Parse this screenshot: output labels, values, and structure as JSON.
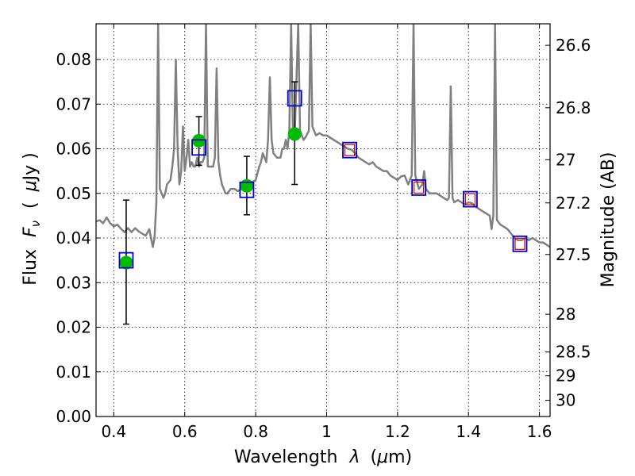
{
  "chart_data": {
    "type": "scatter",
    "xlabel_text": "Wavelength",
    "xlabel_symbol": "λ",
    "xlabel_unit_open": "(",
    "xlabel_unit_mu": "μ",
    "xlabel_unit_rest": "m)",
    "ylabel_text": "Flux",
    "ylabel_symbol": "F",
    "ylabel_subscript": "ν",
    "ylabel_unit_open": "(",
    "ylabel_unit_mu": "μ",
    "ylabel_unit_rest": "Jy )",
    "y2label": "Magnitude (AB)",
    "xlim": [
      0.35,
      1.63
    ],
    "ylim": [
      0.0,
      0.088
    ],
    "grid": true,
    "x_ticks": [
      0.4,
      0.6,
      0.8,
      1.0,
      1.2,
      1.4,
      1.6
    ],
    "x_tick_labels": [
      "0.4",
      "0.6",
      "0.8",
      "1",
      "1.2",
      "1.4",
      "1.6"
    ],
    "y_ticks": [
      0.0,
      0.01,
      0.02,
      0.03,
      0.04,
      0.05,
      0.06,
      0.07,
      0.08
    ],
    "y_tick_labels": [
      "0.00",
      "0.01",
      "0.02",
      "0.03",
      "0.04",
      "0.05",
      "0.06",
      "0.07",
      "0.08"
    ],
    "mag_ticks": [
      26.6,
      26.8,
      27,
      27.2,
      27.5,
      28,
      28.5,
      29,
      30
    ],
    "mag_tick_labels": [
      "26.6",
      "26.8",
      "27",
      "27.2",
      "27.5",
      "28",
      "28.5",
      "29",
      "30"
    ],
    "colors": {
      "spectrum": "#808080",
      "observed": "#00bb00",
      "model_box": "#0000cc",
      "model_box_inner": "#cc0000",
      "errorbar": "#000000"
    },
    "spectrum": [
      [
        0.35,
        0.0437
      ],
      [
        0.36,
        0.044
      ],
      [
        0.37,
        0.0433
      ],
      [
        0.38,
        0.0446
      ],
      [
        0.39,
        0.0433
      ],
      [
        0.4,
        0.0426
      ],
      [
        0.41,
        0.043
      ],
      [
        0.42,
        0.0421
      ],
      [
        0.43,
        0.0413
      ],
      [
        0.44,
        0.0422
      ],
      [
        0.45,
        0.0413
      ],
      [
        0.46,
        0.0422
      ],
      [
        0.47,
        0.0415
      ],
      [
        0.48,
        0.041
      ],
      [
        0.49,
        0.0405
      ],
      [
        0.5,
        0.042
      ],
      [
        0.505,
        0.04
      ],
      [
        0.51,
        0.038
      ],
      [
        0.515,
        0.04
      ],
      [
        0.52,
        0.048
      ],
      [
        0.525,
        0.088
      ],
      [
        0.53,
        0.051
      ],
      [
        0.54,
        0.049
      ],
      [
        0.545,
        0.05
      ],
      [
        0.55,
        0.052
      ],
      [
        0.56,
        0.053
      ],
      [
        0.565,
        0.056
      ],
      [
        0.57,
        0.06
      ],
      [
        0.575,
        0.08
      ],
      [
        0.58,
        0.06
      ],
      [
        0.585,
        0.052
      ],
      [
        0.59,
        0.055
      ],
      [
        0.595,
        0.065
      ],
      [
        0.6,
        0.055
      ],
      [
        0.605,
        0.058
      ],
      [
        0.61,
        0.062
      ],
      [
        0.615,
        0.056
      ],
      [
        0.62,
        0.057
      ],
      [
        0.625,
        0.056
      ],
      [
        0.63,
        0.056
      ],
      [
        0.635,
        0.058
      ],
      [
        0.64,
        0.056
      ],
      [
        0.645,
        0.057
      ],
      [
        0.65,
        0.057
      ],
      [
        0.655,
        0.058
      ],
      [
        0.66,
        0.088
      ],
      [
        0.665,
        0.056
      ],
      [
        0.67,
        0.056
      ],
      [
        0.675,
        0.056
      ],
      [
        0.68,
        0.056
      ],
      [
        0.685,
        0.058
      ],
      [
        0.69,
        0.078
      ],
      [
        0.695,
        0.057
      ],
      [
        0.7,
        0.054
      ],
      [
        0.705,
        0.052
      ],
      [
        0.71,
        0.051
      ],
      [
        0.715,
        0.05
      ],
      [
        0.72,
        0.05
      ],
      [
        0.73,
        0.051
      ],
      [
        0.74,
        0.051
      ],
      [
        0.75,
        0.0505
      ],
      [
        0.76,
        0.051
      ],
      [
        0.77,
        0.052
      ],
      [
        0.78,
        0.052
      ],
      [
        0.79,
        0.0525
      ],
      [
        0.8,
        0.053
      ],
      [
        0.81,
        0.056
      ],
      [
        0.815,
        0.057
      ],
      [
        0.82,
        0.059
      ],
      [
        0.825,
        0.058
      ],
      [
        0.83,
        0.057
      ],
      [
        0.835,
        0.062
      ],
      [
        0.84,
        0.076
      ],
      [
        0.845,
        0.062
      ],
      [
        0.85,
        0.059
      ],
      [
        0.86,
        0.058
      ],
      [
        0.87,
        0.058
      ],
      [
        0.875,
        0.06
      ],
      [
        0.88,
        0.06
      ],
      [
        0.885,
        0.062
      ],
      [
        0.89,
        0.06
      ],
      [
        0.895,
        0.064
      ],
      [
        0.9,
        0.088
      ],
      [
        0.905,
        0.064
      ],
      [
        0.91,
        0.063
      ],
      [
        0.92,
        0.088
      ],
      [
        0.925,
        0.064
      ],
      [
        0.93,
        0.063
      ],
      [
        0.935,
        0.062
      ],
      [
        0.94,
        0.0625
      ],
      [
        0.95,
        0.064
      ],
      [
        0.955,
        0.088
      ],
      [
        0.96,
        0.065
      ],
      [
        0.965,
        0.064
      ],
      [
        0.97,
        0.063
      ],
      [
        0.98,
        0.0635
      ],
      [
        0.99,
        0.063
      ],
      [
        1.0,
        0.063
      ],
      [
        1.01,
        0.0625
      ],
      [
        1.02,
        0.062
      ],
      [
        1.03,
        0.0615
      ],
      [
        1.04,
        0.061
      ],
      [
        1.05,
        0.0605
      ],
      [
        1.06,
        0.06
      ],
      [
        1.07,
        0.0598
      ],
      [
        1.08,
        0.059
      ],
      [
        1.09,
        0.058
      ],
      [
        1.1,
        0.0575
      ],
      [
        1.11,
        0.057
      ],
      [
        1.12,
        0.0565
      ],
      [
        1.13,
        0.057
      ],
      [
        1.14,
        0.056
      ],
      [
        1.15,
        0.0555
      ],
      [
        1.16,
        0.055
      ],
      [
        1.17,
        0.055
      ],
      [
        1.18,
        0.054
      ],
      [
        1.19,
        0.0535
      ],
      [
        1.2,
        0.053
      ],
      [
        1.21,
        0.0538
      ],
      [
        1.22,
        0.054
      ],
      [
        1.225,
        0.053
      ],
      [
        1.23,
        0.052
      ],
      [
        1.24,
        0.054
      ],
      [
        1.245,
        0.088
      ],
      [
        1.25,
        0.054
      ],
      [
        1.26,
        0.051
      ],
      [
        1.27,
        0.052
      ],
      [
        1.275,
        0.055
      ],
      [
        1.28,
        0.051
      ],
      [
        1.29,
        0.05
      ],
      [
        1.3,
        0.05
      ],
      [
        1.31,
        0.05
      ],
      [
        1.32,
        0.0495
      ],
      [
        1.33,
        0.049
      ],
      [
        1.34,
        0.0485
      ],
      [
        1.345,
        0.049
      ],
      [
        1.35,
        0.074
      ],
      [
        1.355,
        0.049
      ],
      [
        1.36,
        0.048
      ],
      [
        1.37,
        0.0485
      ],
      [
        1.38,
        0.048
      ],
      [
        1.39,
        0.0475
      ],
      [
        1.4,
        0.048
      ],
      [
        1.41,
        0.0478
      ],
      [
        1.42,
        0.047
      ],
      [
        1.43,
        0.0465
      ],
      [
        1.44,
        0.046
      ],
      [
        1.45,
        0.0455
      ],
      [
        1.46,
        0.045
      ],
      [
        1.465,
        0.042
      ],
      [
        1.47,
        0.045
      ],
      [
        1.475,
        0.088
      ],
      [
        1.48,
        0.044
      ],
      [
        1.49,
        0.043
      ],
      [
        1.5,
        0.0425
      ],
      [
        1.51,
        0.042
      ],
      [
        1.52,
        0.041
      ],
      [
        1.53,
        0.04
      ],
      [
        1.54,
        0.0395
      ],
      [
        1.55,
        0.0395
      ],
      [
        1.56,
        0.04
      ],
      [
        1.57,
        0.0395
      ],
      [
        1.58,
        0.04
      ],
      [
        1.59,
        0.0395
      ],
      [
        1.6,
        0.039
      ],
      [
        1.61,
        0.039
      ],
      [
        1.62,
        0.0385
      ],
      [
        1.63,
        0.038
      ]
    ],
    "observed": [
      {
        "x": 0.435,
        "y": 0.0345,
        "yerr_low": 0.0207,
        "yerr_high": 0.0485
      },
      {
        "x": 0.64,
        "y": 0.0618,
        "yerr_low": 0.0563,
        "yerr_high": 0.0672
      },
      {
        "x": 0.775,
        "y": 0.0517,
        "yerr_low": 0.0452,
        "yerr_high": 0.0583
      },
      {
        "x": 0.91,
        "y": 0.0633,
        "yerr_low": 0.052,
        "yerr_high": 0.075
      }
    ],
    "model": [
      {
        "x": 0.435,
        "y": 0.035,
        "inner": false
      },
      {
        "x": 0.64,
        "y": 0.0603,
        "inner": false
      },
      {
        "x": 0.775,
        "y": 0.0508,
        "inner": false
      },
      {
        "x": 0.91,
        "y": 0.0713,
        "inner": false
      },
      {
        "x": 1.065,
        "y": 0.0597,
        "inner": true
      },
      {
        "x": 1.26,
        "y": 0.0513,
        "inner": true
      },
      {
        "x": 1.405,
        "y": 0.0487,
        "inner": true
      },
      {
        "x": 1.545,
        "y": 0.0387,
        "inner": true
      }
    ]
  }
}
